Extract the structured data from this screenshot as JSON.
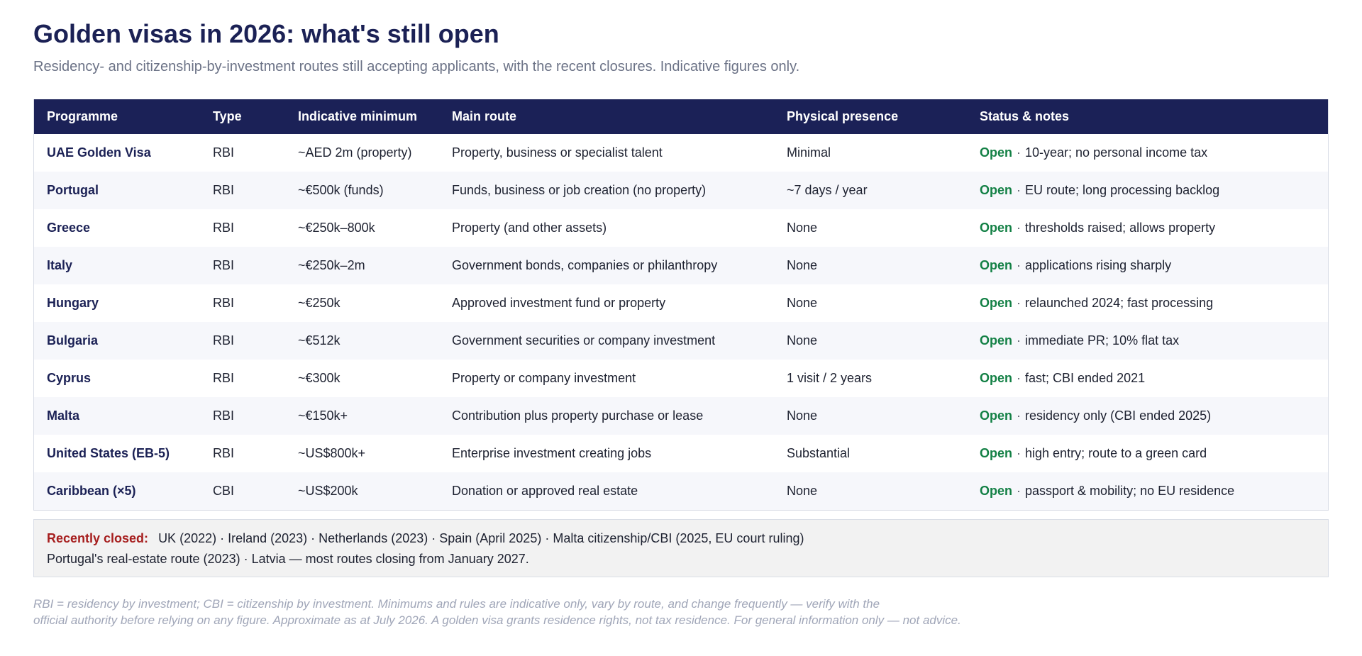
{
  "header": {
    "title": "Golden visas in 2026: what's still open",
    "subtitle": "Residency- and citizenship-by-investment routes still accepting applicants, with the recent closures. Indicative figures only."
  },
  "table": {
    "columns": [
      "Programme",
      "Type",
      "Indicative minimum",
      "Main route",
      "Physical presence",
      "Status & notes"
    ],
    "rows": [
      {
        "programme": "UAE Golden Visa",
        "type": "RBI",
        "minimum": "~AED 2m (property)",
        "route": "Property, business or specialist talent",
        "presence": "Minimal",
        "status": "Open",
        "note": "10-year; no personal income tax"
      },
      {
        "programme": "Portugal",
        "type": "RBI",
        "minimum": "~€500k (funds)",
        "route": "Funds, business or job creation (no property)",
        "presence": "~7 days / year",
        "status": "Open",
        "note": "EU route; long processing backlog"
      },
      {
        "programme": "Greece",
        "type": "RBI",
        "minimum": "~€250k–800k",
        "route": "Property (and other assets)",
        "presence": "None",
        "status": "Open",
        "note": "thresholds raised; allows property"
      },
      {
        "programme": "Italy",
        "type": "RBI",
        "minimum": "~€250k–2m",
        "route": "Government bonds, companies or philanthropy",
        "presence": "None",
        "status": "Open",
        "note": "applications rising sharply"
      },
      {
        "programme": "Hungary",
        "type": "RBI",
        "minimum": "~€250k",
        "route": "Approved investment fund or property",
        "presence": "None",
        "status": "Open",
        "note": "relaunched 2024; fast processing"
      },
      {
        "programme": "Bulgaria",
        "type": "RBI",
        "minimum": "~€512k",
        "route": "Government securities or company investment",
        "presence": "None",
        "status": "Open",
        "note": "immediate PR; 10% flat tax"
      },
      {
        "programme": "Cyprus",
        "type": "RBI",
        "minimum": "~€300k",
        "route": "Property or company investment",
        "presence": "1 visit / 2 years",
        "status": "Open",
        "note": "fast; CBI ended 2021"
      },
      {
        "programme": "Malta",
        "type": "RBI",
        "minimum": "~€150k+",
        "route": "Contribution plus property purchase or lease",
        "presence": "None",
        "status": "Open",
        "note": "residency only (CBI ended 2025)"
      },
      {
        "programme": "United States (EB-5)",
        "type": "RBI",
        "minimum": "~US$800k+",
        "route": "Enterprise investment creating jobs",
        "presence": "Substantial",
        "status": "Open",
        "note": "high entry; route to a green card"
      },
      {
        "programme": "Caribbean (×5)",
        "type": "CBI",
        "minimum": "~US$200k",
        "route": "Donation or approved real estate",
        "presence": "None",
        "status": "Open",
        "note": "passport & mobility; no EU residence"
      }
    ],
    "separator": "·"
  },
  "closed": {
    "label": "Recently closed:",
    "line1": "UK (2022) · Ireland (2023) · Netherlands (2023) · Spain (April 2025) · Malta citizenship/CBI (2025, EU court ruling)",
    "line2": "Portugal's real-estate route (2023) · Latvia — most routes closing from January 2027."
  },
  "footnote": {
    "line1": "RBI = residency by investment; CBI = citizenship by investment. Minimums and rules are indicative only, vary by route, and change frequently — verify with the",
    "line2": "official authority before relying on any figure. Approximate as at July 2026. A golden visa grants residence rights, not tax residence. For general information only — not advice."
  },
  "colors": {
    "header_bg": "#1b2157",
    "title": "#1b2155",
    "status_open": "#138045",
    "closed_label": "#a61e1e",
    "row_alt": "#f6f7fb"
  }
}
